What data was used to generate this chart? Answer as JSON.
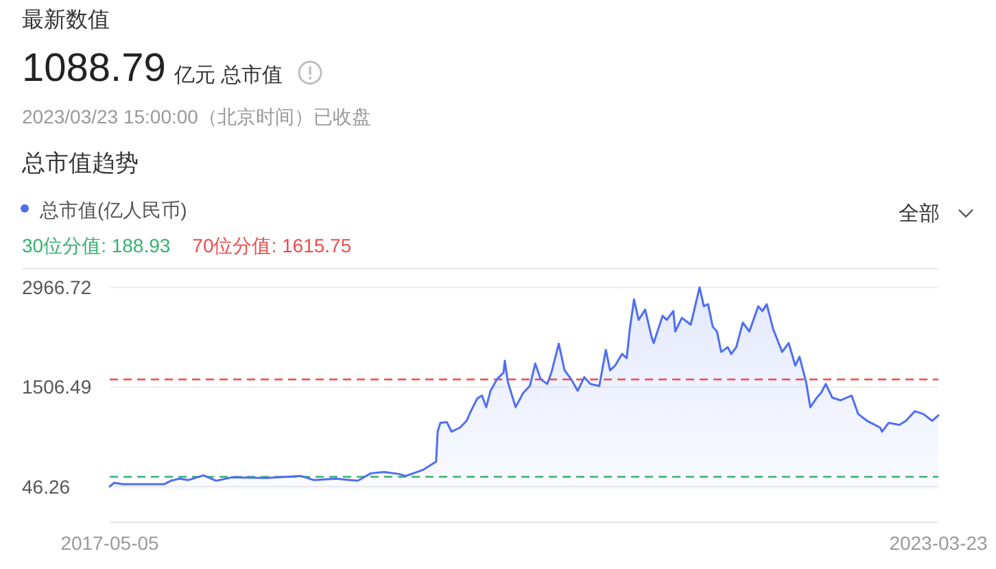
{
  "chart_data": {
    "type": "area",
    "title": "总市值趋势",
    "annotations": [
      "最新数值",
      "1088.79",
      "亿元 总市值",
      "2023/03/23 15:00:00（北京时间）已收盘",
      "全部"
    ],
    "x": [
      "2017-05-05",
      "2017-05-16",
      "2017-06-08",
      "2017-09-23",
      "2017-10-10",
      "2017-11-01",
      "2017-11-24",
      "2018-01-03",
      "2018-02-05",
      "2018-03-17",
      "2018-06-15",
      "2018-09-13",
      "2018-10-17",
      "2018-12-12",
      "2019-02-07",
      "2019-03-13",
      "2019-04-16",
      "2019-05-25",
      "2019-06-11",
      "2019-07-26",
      "2019-08-23",
      "2019-08-29",
      "2019-09-02",
      "2019-09-09",
      "2019-09-26",
      "2019-10-08",
      "2019-10-30",
      "2019-11-16",
      "2019-11-27",
      "2019-12-14",
      "2019-12-26",
      "2020-01-06",
      "2020-01-17",
      "2020-02-03",
      "2020-02-20",
      "2020-02-23",
      "2020-03-02",
      "2020-03-22",
      "2020-04-11",
      "2020-04-28",
      "2020-05-12",
      "2020-05-26",
      "2020-06-12",
      "2020-06-23",
      "2020-07-12",
      "2020-07-27",
      "2020-08-13",
      "2020-08-30",
      "2020-09-16",
      "2020-10-02",
      "2020-10-25",
      "2020-11-11",
      "2020-11-22",
      "2020-12-05",
      "2020-12-23",
      "2021-01-04",
      "2021-01-12",
      "2021-01-23",
      "2021-02-04",
      "2021-02-21",
      "2021-03-09",
      "2021-03-15",
      "2021-04-07",
      "2021-04-18",
      "2021-05-05",
      "2021-05-10",
      "2021-05-27",
      "2021-06-19",
      "2021-07-12",
      "2021-07-23",
      "2021-08-03",
      "2021-08-15",
      "2021-08-26",
      "2021-09-06",
      "2021-09-23",
      "2021-10-02",
      "2021-10-15",
      "2021-11-01",
      "2021-11-18",
      "2021-12-11",
      "2021-12-22",
      "2022-01-02",
      "2022-01-19",
      "2022-02-11",
      "2022-02-28",
      "2022-03-17",
      "2022-03-28",
      "2022-04-14",
      "2022-04-25",
      "2022-05-12",
      "2022-05-23",
      "2022-06-04",
      "2022-06-21",
      "2022-07-13",
      "2022-08-10",
      "2022-08-27",
      "2022-09-19",
      "2022-10-23",
      "2022-10-28",
      "2022-11-14",
      "2022-12-12",
      "2022-12-29",
      "2023-01-21",
      "2023-02-12",
      "2023-03-07",
      "2023-03-23"
    ],
    "series": [
      {
        "name": "总市值(亿人民币)",
        "color": "#4e6ef2",
        "values": [
          46.26,
          100,
          80,
          80,
          130,
          160,
          140,
          210,
          130,
          180,
          170,
          200,
          140,
          160,
          130,
          240,
          260,
          230,
          200,
          290,
          390,
          410,
          850,
          980,
          990,
          850,
          910,
          1010,
          1150,
          1340,
          1380,
          1210,
          1450,
          1620,
          1720,
          1890,
          1580,
          1210,
          1420,
          1520,
          1850,
          1620,
          1550,
          1720,
          2140,
          1750,
          1620,
          1450,
          1650,
          1550,
          1520,
          2050,
          1750,
          1820,
          1990,
          1930,
          2350,
          2790,
          2490,
          2640,
          2250,
          2150,
          2550,
          2490,
          2620,
          2320,
          2520,
          2420,
          2966.72,
          2690,
          2720,
          2390,
          2320,
          2020,
          2090,
          1990,
          2090,
          2450,
          2320,
          2690,
          2620,
          2720,
          2350,
          2020,
          2150,
          1820,
          1950,
          1580,
          1210,
          1350,
          1420,
          1550,
          1350,
          1310,
          1380,
          1110,
          1010,
          910,
          850,
          980,
          950,
          1010,
          1150,
          1110,
          1010,
          1088.79
        ]
      }
    ],
    "xlim": [
      "2017-05-05",
      "2023-03-23"
    ],
    "xticks": [
      "2017-05-05",
      "2023-03-23"
    ],
    "ylim": [
      -480,
      3240
    ],
    "yticks": [
      46.26,
      1506.49,
      2966.72
    ],
    "grid": "y",
    "legend": "top left",
    "ref_lines": [
      {
        "axis": "y",
        "value": 188.93,
        "label": "30位分值: 188.93",
        "color": "#34b26e",
        "line_style": "dashed"
      },
      {
        "axis": "y",
        "value": 1615.75,
        "label": "70位分值: 1615.75",
        "color": "#f0494b",
        "line_style": "dashed"
      }
    ]
  }
}
